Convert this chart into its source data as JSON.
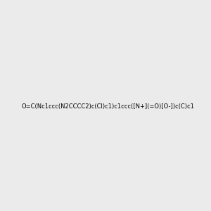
{
  "smiles": "O=C(Nc1ccc(N2CCCC2)c(Cl)c1)c1ccc([N+](=O)[O-])c(C)c1",
  "bg_color": "#ebebeb",
  "figsize": [
    3.0,
    3.0
  ],
  "dpi": 100,
  "img_size": [
    300,
    300
  ],
  "atom_colors": {
    "N": "#0000ff",
    "O": "#ff0000",
    "Cl": "#00aa00",
    "C": "#000000"
  },
  "bond_lw": 1.2
}
